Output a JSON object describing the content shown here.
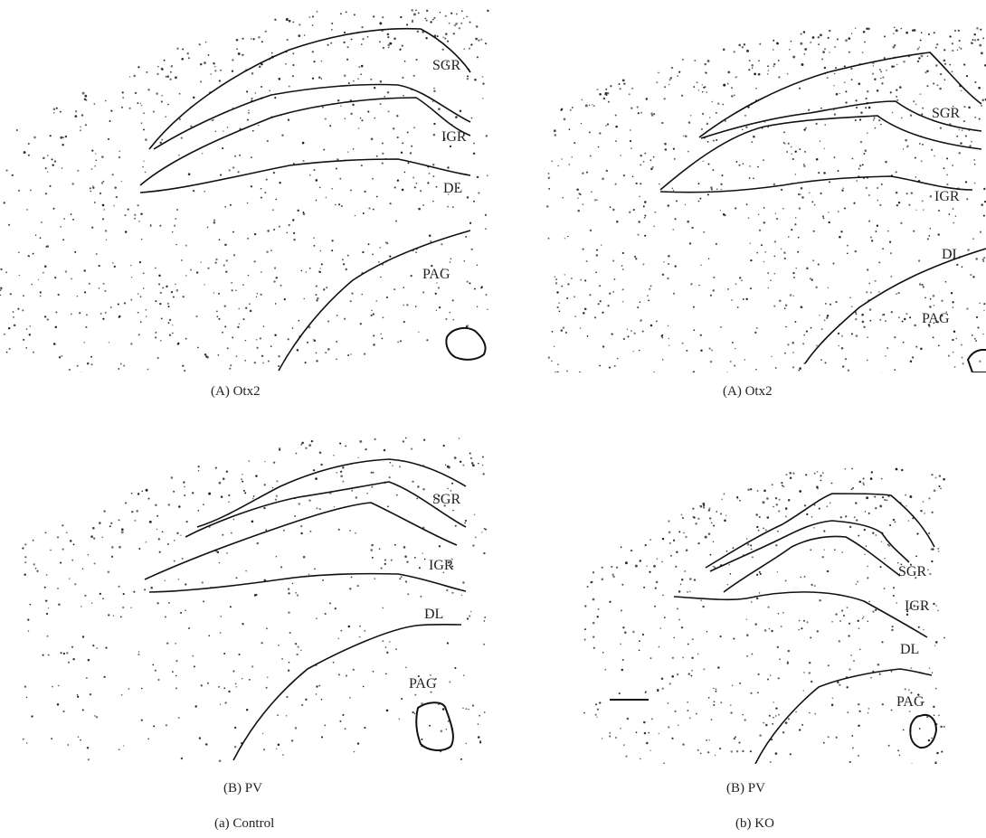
{
  "panels": [
    {
      "id": "control-otx2",
      "caption": "(A) Otx2",
      "labels": [
        "SGR",
        "IGR",
        "DL",
        "PAG"
      ]
    },
    {
      "id": "ko-otx2",
      "caption": "(A) Otx2",
      "labels": [
        "SGR",
        "IGR",
        "DL",
        "PAG"
      ]
    },
    {
      "id": "control-pv",
      "caption": "(B) PV",
      "labels": [
        "SGR",
        "IGR",
        "DL",
        "PAG"
      ]
    },
    {
      "id": "ko-pv",
      "caption": "(B) PV",
      "labels": [
        "SGR",
        "IGR",
        "DL",
        "PAG"
      ]
    }
  ],
  "columns": {
    "control": "(a)  Control",
    "ko": "(b)  KO"
  }
}
